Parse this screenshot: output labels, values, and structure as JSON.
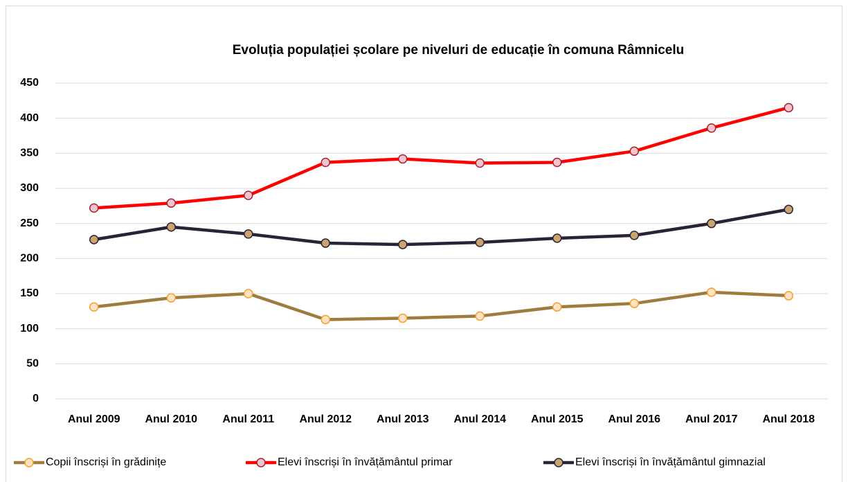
{
  "chart_data": {
    "type": "line",
    "title": "Evoluția populației școlare pe niveluri de educație în comuna Râmnicelu",
    "categories": [
      "Anul 2009",
      "Anul 2010",
      "Anul 2011",
      "Anul 2012",
      "Anul 2013",
      "Anul 2014",
      "Anul 2015",
      "Anul 2016",
      "Anul 2017",
      "Anul 2018"
    ],
    "series": [
      {
        "name": "Copii înscriși în grădinițe",
        "color": "#9E7B3F",
        "marker_fill": "#FDE3C4",
        "marker_stroke": "#F5A02A",
        "values": [
          131,
          144,
          150,
          113,
          115,
          118,
          131,
          136,
          152,
          147
        ]
      },
      {
        "name": "Elevi înscriși în învățământul primar",
        "color": "#FF0000",
        "marker_fill": "#F2C4CC",
        "marker_stroke": "#A8202E",
        "values": [
          272,
          279,
          290,
          337,
          342,
          336,
          337,
          353,
          386,
          415
        ]
      },
      {
        "name": "Elevi înscriși în învățământul gimnazial",
        "color": "#2B2238",
        "marker_fill": "#C9A46C",
        "marker_stroke": "#2B2238",
        "values": [
          227,
          245,
          235,
          222,
          220,
          223,
          229,
          233,
          250,
          270
        ]
      }
    ],
    "ylim": [
      0,
      450
    ],
    "yticks": [
      0,
      50,
      100,
      150,
      200,
      250,
      300,
      350,
      400,
      450
    ],
    "grid": true,
    "legend": "bottom"
  }
}
